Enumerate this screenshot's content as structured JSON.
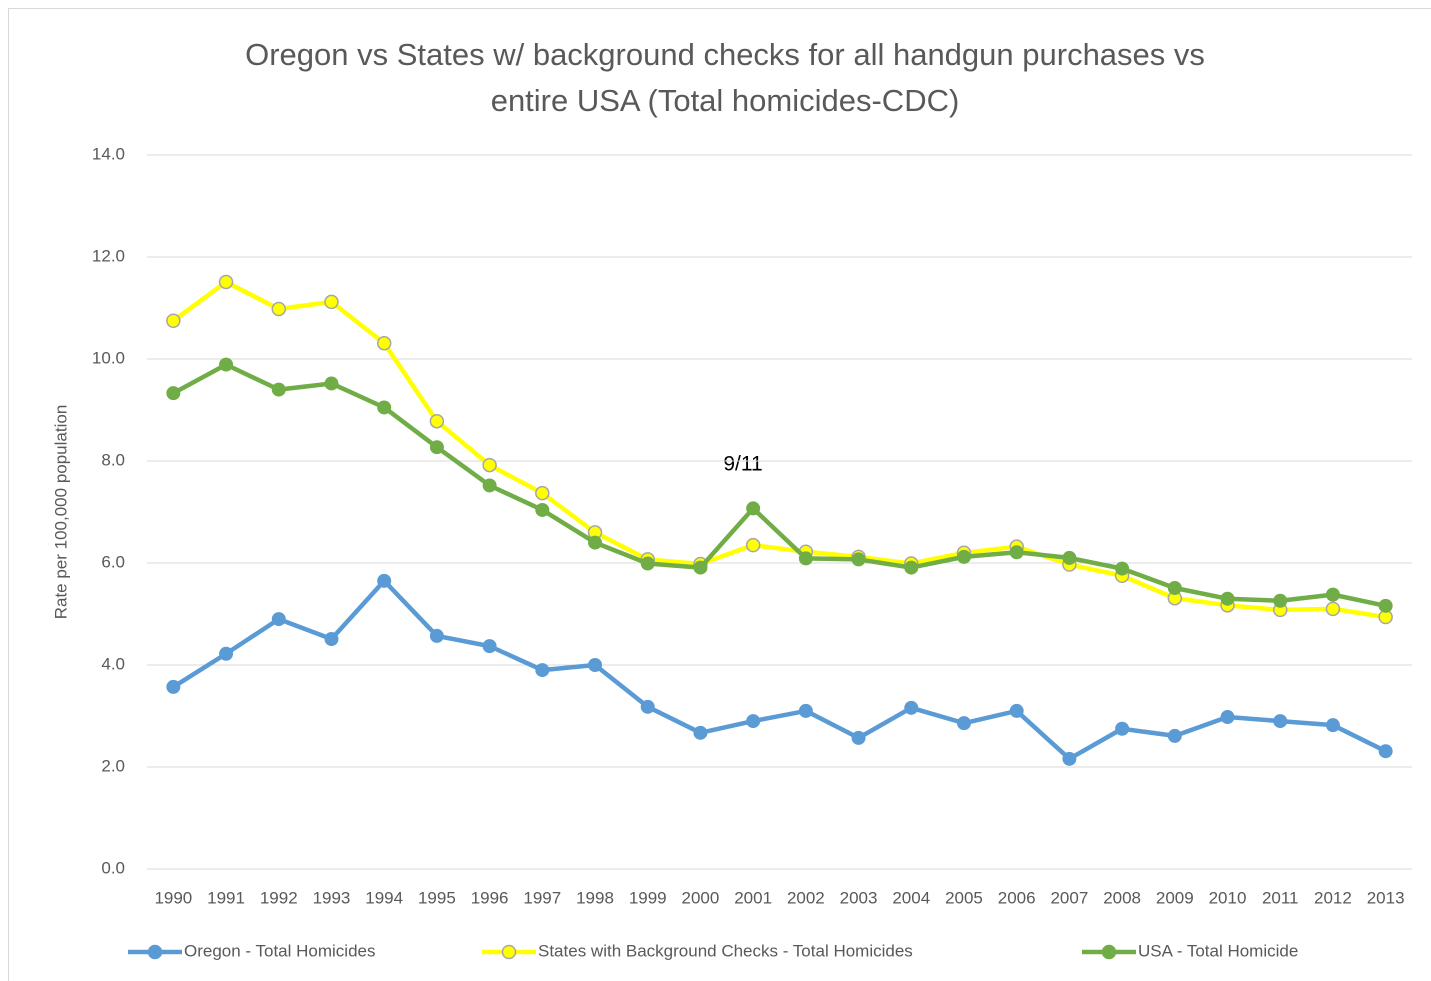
{
  "chart_data": {
    "type": "line",
    "title": [
      "Oregon vs States w/ background checks for all handgun purchases vs",
      "entire USA (Total homicides-CDC)"
    ],
    "y_label": "Rate per 100,000 population",
    "annotation": "9/11",
    "categories": [
      "1990",
      "1991",
      "1992",
      "1993",
      "1994",
      "1995",
      "1996",
      "1997",
      "1998",
      "1999",
      "2000",
      "2001",
      "2002",
      "2003",
      "2004",
      "2005",
      "2006",
      "2007",
      "2008",
      "2009",
      "2010",
      "2011",
      "2012",
      "2013"
    ],
    "series": [
      {
        "name": "Oregon - Total Homicides",
        "color": "#5b9bd5",
        "values": [
          3.57,
          4.22,
          4.9,
          4.51,
          5.65,
          4.57,
          4.37,
          3.9,
          4.0,
          3.18,
          2.67,
          2.9,
          3.1,
          2.57,
          3.16,
          2.86,
          3.1,
          2.16,
          2.75,
          2.61,
          2.98,
          2.9,
          2.82,
          2.31
        ]
      },
      {
        "name": "States with Background Checks - Total Homicides",
        "color": "#ffff00",
        "values": [
          10.75,
          11.51,
          10.98,
          11.12,
          10.31,
          8.78,
          7.92,
          7.37,
          6.6,
          6.07,
          5.98,
          6.35,
          6.22,
          6.12,
          5.99,
          6.2,
          6.32,
          5.97,
          5.75,
          5.31,
          5.17,
          5.08,
          5.1,
          4.94
        ]
      },
      {
        "name": "USA - Total Homicide",
        "color": "#70ad47",
        "values": [
          9.33,
          9.89,
          9.4,
          9.52,
          9.05,
          8.27,
          7.52,
          7.04,
          6.4,
          5.99,
          5.91,
          7.07,
          6.09,
          6.07,
          5.91,
          6.12,
          6.21,
          6.1,
          5.89,
          5.51,
          5.3,
          5.26,
          5.38,
          5.16
        ]
      }
    ],
    "ylim": [
      0,
      14
    ],
    "yticks": [
      {
        "value": 0,
        "label": "0.0"
      },
      {
        "value": 2,
        "label": "2.0"
      },
      {
        "value": 4,
        "label": "4.0"
      },
      {
        "value": 6,
        "label": "6.0"
      },
      {
        "value": 8,
        "label": "8.0"
      },
      {
        "value": 10,
        "label": "10.0"
      },
      {
        "value": 12,
        "label": "12.0"
      },
      {
        "value": 14,
        "label": "14.0"
      }
    ],
    "grid": true,
    "legend": "bottom"
  }
}
